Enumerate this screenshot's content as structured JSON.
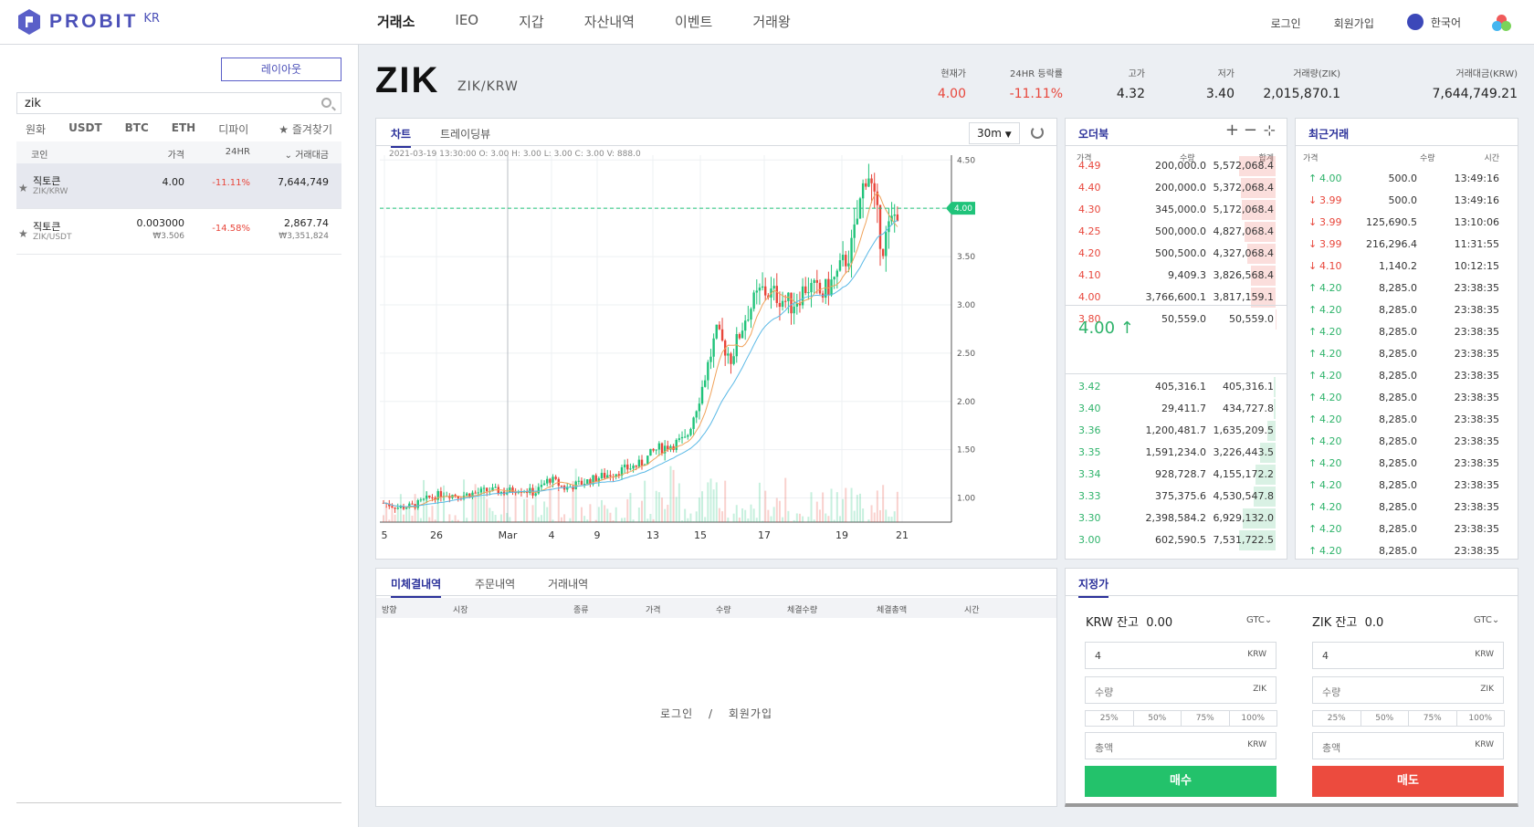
{
  "nav": {
    "logo": "PROBIT",
    "logo_region": "KR",
    "main": [
      "거래소",
      "IEO",
      "지갑",
      "자산내역",
      "이벤트",
      "거래왕"
    ],
    "login": "로그인",
    "signup": "회원가입",
    "language": "한국어"
  },
  "sidebar": {
    "layout_button": "레이아웃",
    "search_value": "zik",
    "market_tabs": [
      "원화",
      "USDT",
      "BTC",
      "ETH",
      "디파이"
    ],
    "favorites": "즐겨찾기",
    "columns": {
      "coin": "코인",
      "price": "가격",
      "change": "24HR",
      "volume": "거래대금"
    },
    "coins": [
      {
        "name": "직토큰",
        "pair": "ZIK/KRW",
        "price": "4.00",
        "price_sub": "",
        "change": "-11.11%",
        "volume": "7,644,749",
        "volume_sub": ""
      },
      {
        "name": "직토큰",
        "pair": "ZIK/USDT",
        "price": "0.003000",
        "price_sub": "₩3.506",
        "change": "-14.58%",
        "volume": "2,867.74",
        "volume_sub": "₩3,351,824"
      }
    ]
  },
  "ticker": {
    "symbol": "ZIK",
    "pair": "ZIK/KRW",
    "stats": [
      {
        "label": "현재가",
        "value": "4.00"
      },
      {
        "label": "24HR 등락률",
        "value": "-11.11%"
      },
      {
        "label": "고가",
        "value": "4.32"
      },
      {
        "label": "저가",
        "value": "3.40"
      },
      {
        "label": "거래량(ZIK)",
        "value": "2,015,870.1"
      },
      {
        "label": "거래대금(KRW)",
        "value": "7,644,749.21"
      }
    ]
  },
  "chart_panel": {
    "tabs": [
      "차트",
      "트레이딩뷰"
    ],
    "interval": "30m",
    "ohlc": "2021-03-19 13:30:00  O: 3.00   H: 3.00   L: 3.00   C: 3.00   V: 888.0",
    "last_price_tag": "4.00"
  },
  "chart_data": {
    "type": "candlestick",
    "x_ticks": [
      "5",
      "26",
      "Mar",
      "4",
      "9",
      "13",
      "15",
      "17",
      "19",
      "21"
    ],
    "y_ticks": [
      "4.50",
      "4.00",
      "3.50",
      "3.00",
      "2.50",
      "2.00",
      "1.50",
      "1.00"
    ],
    "ylim": [
      0.75,
      4.55
    ],
    "close_path": [
      0.95,
      0.9,
      0.92,
      1.0,
      1.05,
      1.02,
      1.05,
      1.08,
      1.06,
      1.1,
      1.05,
      1.2,
      1.1,
      1.15,
      1.2,
      1.25,
      1.3,
      1.35,
      1.5,
      1.55,
      1.6,
      2.1,
      2.7,
      2.45,
      2.9,
      3.15,
      3.1,
      3.0,
      3.2,
      3.1,
      3.3,
      3.6,
      4.45,
      3.6,
      4.0
    ]
  },
  "orderbook": {
    "title": "오더북",
    "columns": [
      "가격",
      "수량",
      "합계"
    ],
    "asks": [
      [
        "4.49",
        "200,000.0",
        "5,572,068.4"
      ],
      [
        "4.40",
        "200,000.0",
        "5,372,068.4"
      ],
      [
        "4.30",
        "345,000.0",
        "5,172,068.4"
      ],
      [
        "4.25",
        "500,000.0",
        "4,827,068.4"
      ],
      [
        "4.20",
        "500,500.0",
        "4,327,068.4"
      ],
      [
        "4.10",
        "9,409.3",
        "3,826,568.4"
      ],
      [
        "4.00",
        "3,766,600.1",
        "3,817,159.1"
      ],
      [
        "3.80",
        "50,559.0",
        "50,559.0"
      ]
    ],
    "mid": "4.00 ↑",
    "bids": [
      [
        "3.42",
        "405,316.1",
        "405,316.1"
      ],
      [
        "3.40",
        "29,411.7",
        "434,727.8"
      ],
      [
        "3.36",
        "1,200,481.7",
        "1,635,209.5"
      ],
      [
        "3.35",
        "1,591,234.0",
        "3,226,443.5"
      ],
      [
        "3.34",
        "928,728.7",
        "4,155,172.2"
      ],
      [
        "3.33",
        "375,375.6",
        "4,530,547.8"
      ],
      [
        "3.30",
        "2,398,584.2",
        "6,929,132.0"
      ],
      [
        "3.00",
        "602,590.5",
        "7,531,722.5"
      ]
    ]
  },
  "trades": {
    "title": "최근거래",
    "columns": [
      "가격",
      "수량",
      "시간"
    ],
    "rows": [
      [
        "4.00",
        "500.0",
        "13:49:16",
        "up"
      ],
      [
        "3.99",
        "500.0",
        "13:49:16",
        "down"
      ],
      [
        "3.99",
        "125,690.5",
        "13:10:06",
        "down"
      ],
      [
        "3.99",
        "216,296.4",
        "11:31:55",
        "down"
      ],
      [
        "4.10",
        "1,140.2",
        "10:12:15",
        "down"
      ],
      [
        "4.20",
        "8,285.0",
        "23:38:35",
        "up"
      ],
      [
        "4.20",
        "8,285.0",
        "23:38:35",
        "up"
      ],
      [
        "4.20",
        "8,285.0",
        "23:38:35",
        "up"
      ],
      [
        "4.20",
        "8,285.0",
        "23:38:35",
        "up"
      ],
      [
        "4.20",
        "8,285.0",
        "23:38:35",
        "up"
      ],
      [
        "4.20",
        "8,285.0",
        "23:38:35",
        "up"
      ],
      [
        "4.20",
        "8,285.0",
        "23:38:35",
        "up"
      ],
      [
        "4.20",
        "8,285.0",
        "23:38:35",
        "up"
      ],
      [
        "4.20",
        "8,285.0",
        "23:38:35",
        "up"
      ],
      [
        "4.20",
        "8,285.0",
        "23:38:35",
        "up"
      ],
      [
        "4.20",
        "8,285.0",
        "23:38:35",
        "up"
      ],
      [
        "4.20",
        "8,285.0",
        "23:38:35",
        "up"
      ],
      [
        "4.20",
        "8,285.0",
        "23:38:35",
        "up"
      ]
    ]
  },
  "orders": {
    "tabs": [
      "미체결내역",
      "주문내역",
      "거래내역"
    ],
    "columns": [
      "방향",
      "시장",
      "종류",
      "가격",
      "수량",
      "체결수량",
      "체결총액",
      "시간"
    ],
    "login": "로그인",
    "sep": "/",
    "signup": "회원가입"
  },
  "form": {
    "title": "지정가",
    "buy": {
      "balance_label": "KRW 잔고",
      "balance": "0.00",
      "tif": "GTC",
      "price": "4",
      "price_unit": "KRW",
      "qty_ph": "수량",
      "qty_unit": "ZIK",
      "pcts": [
        "25%",
        "50%",
        "75%",
        "100%"
      ],
      "total_ph": "총액",
      "total_unit": "KRW",
      "button": "매수"
    },
    "sell": {
      "balance_label": "ZIK 잔고",
      "balance": "0.0",
      "tif": "GTC",
      "price": "4",
      "price_unit": "KRW",
      "qty_ph": "수량",
      "qty_unit": "ZIK",
      "pcts": [
        "25%",
        "50%",
        "75%",
        "100%"
      ],
      "total_ph": "총액",
      "total_unit": "KRW",
      "button": "매도"
    }
  },
  "colors": {
    "brand": "#4b50b8",
    "up": "#2fb36b",
    "down": "#e8463b",
    "buy_btn": "#23c26b",
    "sell_btn": "#ec4b3e"
  }
}
